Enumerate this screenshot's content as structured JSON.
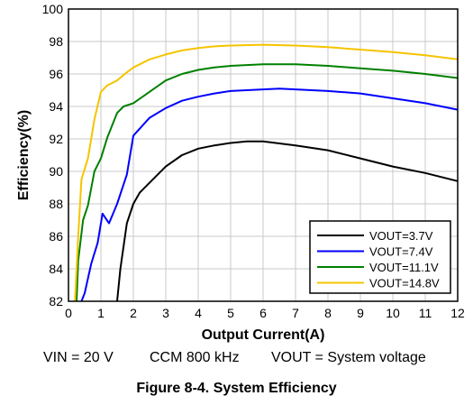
{
  "chart_data": {
    "type": "line",
    "xlabel": "Output Current(A)",
    "ylabel": "Efficiency(%)",
    "xlim": [
      0,
      12
    ],
    "ylim": [
      82,
      100
    ],
    "xticks": [
      0,
      1,
      2,
      3,
      4,
      5,
      6,
      7,
      8,
      9,
      10,
      11,
      12
    ],
    "yticks": [
      82,
      84,
      86,
      88,
      90,
      92,
      94,
      96,
      98,
      100
    ],
    "grid": true,
    "legend_position": "bottom-right",
    "series": [
      {
        "name": "VOUT=3.7V",
        "color": "#000000",
        "x": [
          1.5,
          1.6,
          1.8,
          2.0,
          2.2,
          2.5,
          3.0,
          3.5,
          4.0,
          4.5,
          5.0,
          5.5,
          6.0,
          7.0,
          8.0,
          9.0,
          10.0,
          11.0,
          12.0
        ],
        "y": [
          82.0,
          84.0,
          86.8,
          88.0,
          88.7,
          89.3,
          90.3,
          91.0,
          91.4,
          91.6,
          91.75,
          91.85,
          91.85,
          91.6,
          91.3,
          90.8,
          90.3,
          89.9,
          89.4
        ]
      },
      {
        "name": "VOUT=7.4V",
        "color": "#0000ff",
        "x": [
          0.4,
          0.5,
          0.7,
          0.9,
          1.05,
          1.25,
          1.5,
          1.8,
          2.0,
          2.5,
          3.0,
          3.5,
          4.0,
          4.5,
          5.0,
          5.5,
          6.0,
          6.5,
          7.0,
          8.0,
          9.0,
          10.0,
          11.0,
          12.0
        ],
        "y": [
          82.0,
          82.5,
          84.3,
          85.6,
          87.4,
          86.8,
          88.0,
          89.8,
          92.2,
          93.3,
          93.9,
          94.35,
          94.6,
          94.8,
          94.95,
          95.0,
          95.05,
          95.1,
          95.05,
          94.95,
          94.8,
          94.5,
          94.2,
          93.8
        ]
      },
      {
        "name": "VOUT=11.1V",
        "color": "#008000",
        "x": [
          0.25,
          0.3,
          0.45,
          0.6,
          0.8,
          1.0,
          1.2,
          1.5,
          1.7,
          2.0,
          2.5,
          3.0,
          3.5,
          4.0,
          4.5,
          5.0,
          6.0,
          7.0,
          8.0,
          9.0,
          10.0,
          11.0,
          12.0
        ],
        "y": [
          82.0,
          84.5,
          87.0,
          87.9,
          90.0,
          90.8,
          92.1,
          93.6,
          94.0,
          94.2,
          94.9,
          95.6,
          96.0,
          96.25,
          96.4,
          96.5,
          96.6,
          96.6,
          96.5,
          96.35,
          96.2,
          96.0,
          95.75
        ]
      },
      {
        "name": "VOUT=14.8V",
        "color": "#f5c400",
        "x": [
          0.2,
          0.3,
          0.4,
          0.6,
          0.8,
          1.0,
          1.2,
          1.5,
          1.8,
          2.0,
          2.5,
          3.0,
          3.5,
          4.0,
          4.5,
          5.0,
          6.0,
          7.0,
          8.0,
          9.0,
          10.0,
          11.0,
          12.0
        ],
        "y": [
          82.0,
          86.0,
          89.5,
          90.8,
          93.2,
          94.9,
          95.3,
          95.6,
          96.1,
          96.4,
          96.9,
          97.2,
          97.45,
          97.6,
          97.7,
          97.75,
          97.8,
          97.75,
          97.65,
          97.5,
          97.35,
          97.15,
          96.9
        ]
      }
    ]
  },
  "notes": {
    "vin": "VIN = 20 V",
    "mode": "CCM 800 kHz",
    "vout": "VOUT = System voltage"
  },
  "caption": "Figure 8-4. System Efficiency"
}
